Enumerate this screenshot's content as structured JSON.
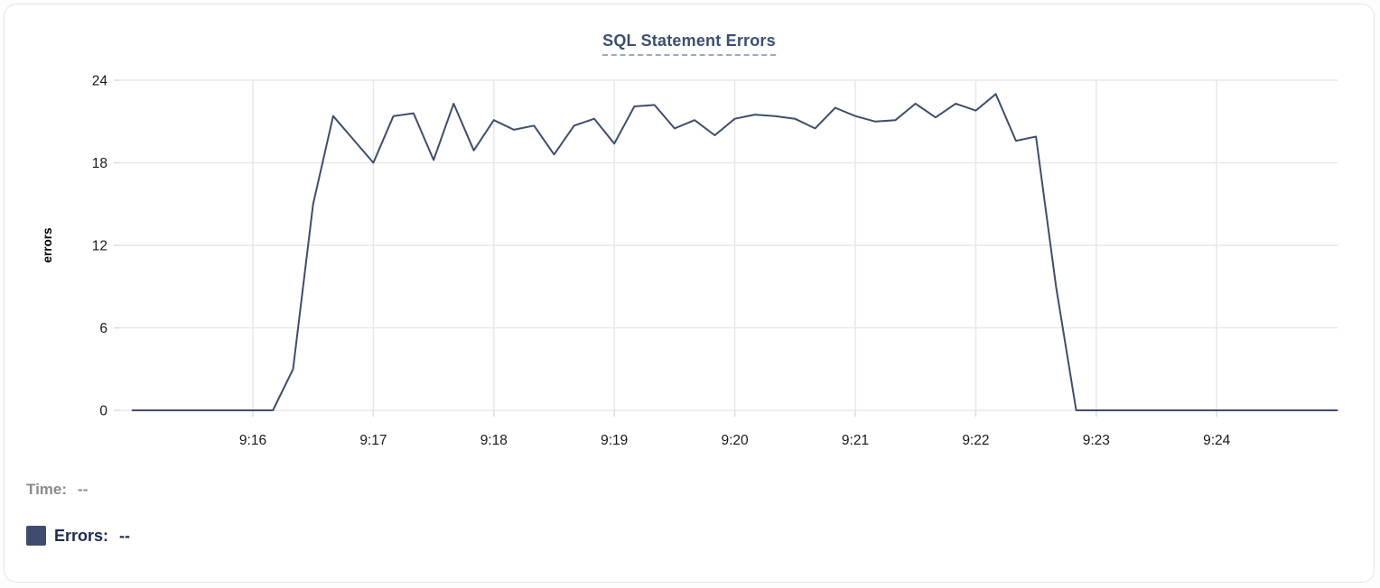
{
  "title": "SQL Statement Errors",
  "legend": {
    "time_label": "Time:",
    "time_value": "--",
    "errors_label": "Errors:",
    "errors_value": "--"
  },
  "colors": {
    "line": "#3e4e6c",
    "swatch": "#3e4d6e",
    "title": "#3b4f71",
    "grid": "#e8e8e8",
    "tick_text": "#1a1a1a",
    "card_border": "#e3e4e8"
  },
  "chart_data": {
    "type": "line",
    "title": "SQL Statement Errors",
    "xlabel": "",
    "ylabel": "errors",
    "ylim": [
      0,
      24
    ],
    "yticks": [
      0,
      6,
      12,
      18,
      24
    ],
    "xticks": [
      "9:16",
      "9:17",
      "9:18",
      "9:19",
      "9:20",
      "9:21",
      "9:22",
      "9:23",
      "9:24"
    ],
    "x_domain": [
      "9:15:00",
      "9:25:00"
    ],
    "grid": true,
    "legend_position": "bottom-left",
    "series": [
      {
        "name": "Errors",
        "color": "#3e4e6c",
        "points": [
          [
            "9:15:00",
            0
          ],
          [
            "9:15:10",
            0
          ],
          [
            "9:15:20",
            0
          ],
          [
            "9:15:30",
            0
          ],
          [
            "9:15:40",
            0
          ],
          [
            "9:15:50",
            0
          ],
          [
            "9:16:00",
            0
          ],
          [
            "9:16:10",
            0
          ],
          [
            "9:16:20",
            3
          ],
          [
            "9:16:30",
            15
          ],
          [
            "9:16:40",
            21.4
          ],
          [
            "9:16:50",
            19.7
          ],
          [
            "9:17:00",
            18
          ],
          [
            "9:17:10",
            21.4
          ],
          [
            "9:17:20",
            21.6
          ],
          [
            "9:17:30",
            18.2
          ],
          [
            "9:17:40",
            22.3
          ],
          [
            "9:17:50",
            18.9
          ],
          [
            "9:18:00",
            21.1
          ],
          [
            "9:18:10",
            20.4
          ],
          [
            "9:18:20",
            20.7
          ],
          [
            "9:18:30",
            18.6
          ],
          [
            "9:18:40",
            20.7
          ],
          [
            "9:18:50",
            21.2
          ],
          [
            "9:19:00",
            19.4
          ],
          [
            "9:19:10",
            22.1
          ],
          [
            "9:19:20",
            22.2
          ],
          [
            "9:19:30",
            20.5
          ],
          [
            "9:19:40",
            21.1
          ],
          [
            "9:19:50",
            20.0
          ],
          [
            "9:20:00",
            21.2
          ],
          [
            "9:20:10",
            21.5
          ],
          [
            "9:20:20",
            21.4
          ],
          [
            "9:20:30",
            21.2
          ],
          [
            "9:20:40",
            20.5
          ],
          [
            "9:20:50",
            22.0
          ],
          [
            "9:21:00",
            21.4
          ],
          [
            "9:21:10",
            21.0
          ],
          [
            "9:21:20",
            21.1
          ],
          [
            "9:21:30",
            22.3
          ],
          [
            "9:21:40",
            21.3
          ],
          [
            "9:21:50",
            22.3
          ],
          [
            "9:22:00",
            21.8
          ],
          [
            "9:22:10",
            23.0
          ],
          [
            "9:22:20",
            19.6
          ],
          [
            "9:22:30",
            19.9
          ],
          [
            "9:22:40",
            9
          ],
          [
            "9:22:50",
            0
          ],
          [
            "9:23:00",
            0
          ],
          [
            "9:23:10",
            0
          ],
          [
            "9:23:20",
            0
          ],
          [
            "9:23:30",
            0
          ],
          [
            "9:23:40",
            0
          ],
          [
            "9:23:50",
            0
          ],
          [
            "9:24:00",
            0
          ],
          [
            "9:24:10",
            0
          ],
          [
            "9:24:20",
            0
          ],
          [
            "9:24:30",
            0
          ],
          [
            "9:24:40",
            0
          ],
          [
            "9:24:50",
            0
          ],
          [
            "9:25:00",
            0
          ]
        ]
      }
    ]
  }
}
